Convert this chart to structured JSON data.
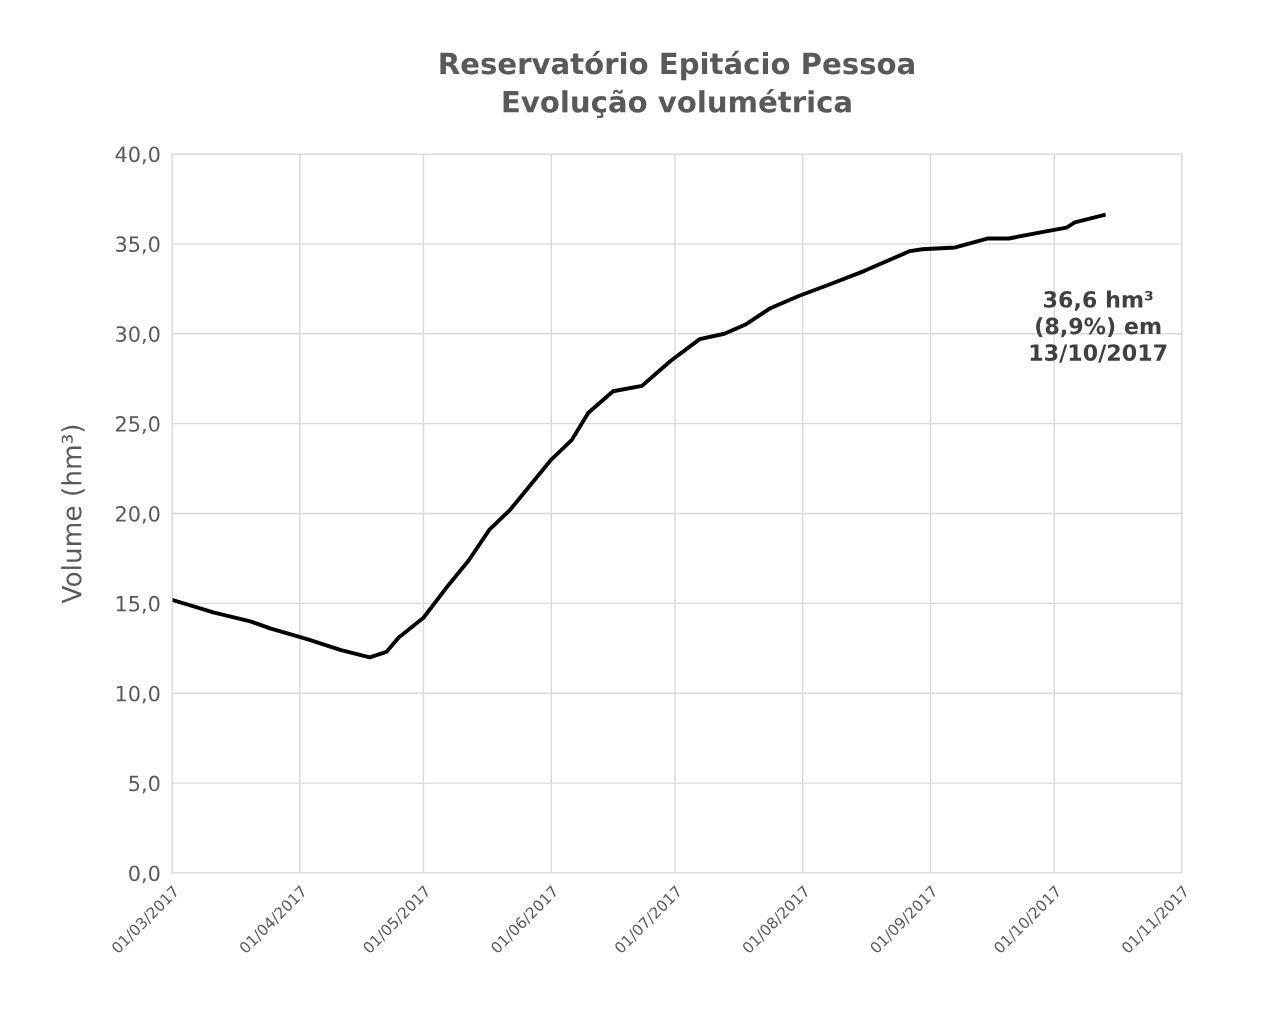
{
  "chart_data": {
    "type": "line",
    "title": "Reservatório Epitácio Pessoa\nEvolução volumétrica",
    "ylabel": "Volume (hm³)",
    "x": [
      "2017-03-01",
      "2017-03-11",
      "2017-03-20",
      "2017-03-25",
      "2017-04-03",
      "2017-04-11",
      "2017-04-18",
      "2017-04-22",
      "2017-04-25",
      "2017-05-01",
      "2017-05-07",
      "2017-05-12",
      "2017-05-17",
      "2017-05-22",
      "2017-05-27",
      "2017-06-01",
      "2017-06-06",
      "2017-06-10",
      "2017-06-16",
      "2017-06-23",
      "2017-06-30",
      "2017-07-07",
      "2017-07-13",
      "2017-07-18",
      "2017-07-24",
      "2017-07-31",
      "2017-08-07",
      "2017-08-16",
      "2017-08-27",
      "2017-08-30",
      "2017-09-07",
      "2017-09-15",
      "2017-09-20",
      "2017-09-29",
      "2017-10-04",
      "2017-10-06",
      "2017-10-13"
    ],
    "series": [
      {
        "color": "#000000",
        "values": [
          15.2,
          14.5,
          14.0,
          13.6,
          13.0,
          12.4,
          12.0,
          12.3,
          13.1,
          14.2,
          16.0,
          17.4,
          19.1,
          20.2,
          21.6,
          23.0,
          24.1,
          25.6,
          26.8,
          27.1,
          28.5,
          29.7,
          30.0,
          30.5,
          31.4,
          32.1,
          32.7,
          33.5,
          34.6,
          34.7,
          34.8,
          35.3,
          35.3,
          35.7,
          35.9,
          36.2,
          36.6
        ]
      }
    ],
    "xlim": [
      "2017-03-01",
      "2017-11-01"
    ],
    "xticks": [
      {
        "value": "2017-03-01",
        "label": "01/03/2017"
      },
      {
        "value": "2017-04-01",
        "label": "01/04/2017"
      },
      {
        "value": "2017-05-01",
        "label": "01/05/2017"
      },
      {
        "value": "2017-06-01",
        "label": "01/06/2017"
      },
      {
        "value": "2017-07-01",
        "label": "01/07/2017"
      },
      {
        "value": "2017-08-01",
        "label": "01/08/2017"
      },
      {
        "value": "2017-09-01",
        "label": "01/09/2017"
      },
      {
        "value": "2017-10-01",
        "label": "01/10/2017"
      },
      {
        "value": "2017-11-01",
        "label": "01/11/2017"
      }
    ],
    "ylim": [
      0,
      40
    ],
    "yticks": [
      {
        "value": 0,
        "label": "0,0"
      },
      {
        "value": 5,
        "label": "5,0"
      },
      {
        "value": 10,
        "label": "10,0"
      },
      {
        "value": 15,
        "label": "15,0"
      },
      {
        "value": 20,
        "label": "20,0"
      },
      {
        "value": 25,
        "label": "25,0"
      },
      {
        "value": 30,
        "label": "30,0"
      },
      {
        "value": 35,
        "label": "35,0"
      },
      {
        "value": 40,
        "label": "40,0"
      }
    ],
    "grid": true,
    "legend": false,
    "marker": "none",
    "line_style": "solid",
    "annotations": [
      "36,6 hm³\n(8,9%) em\n13/10/2017"
    ]
  }
}
